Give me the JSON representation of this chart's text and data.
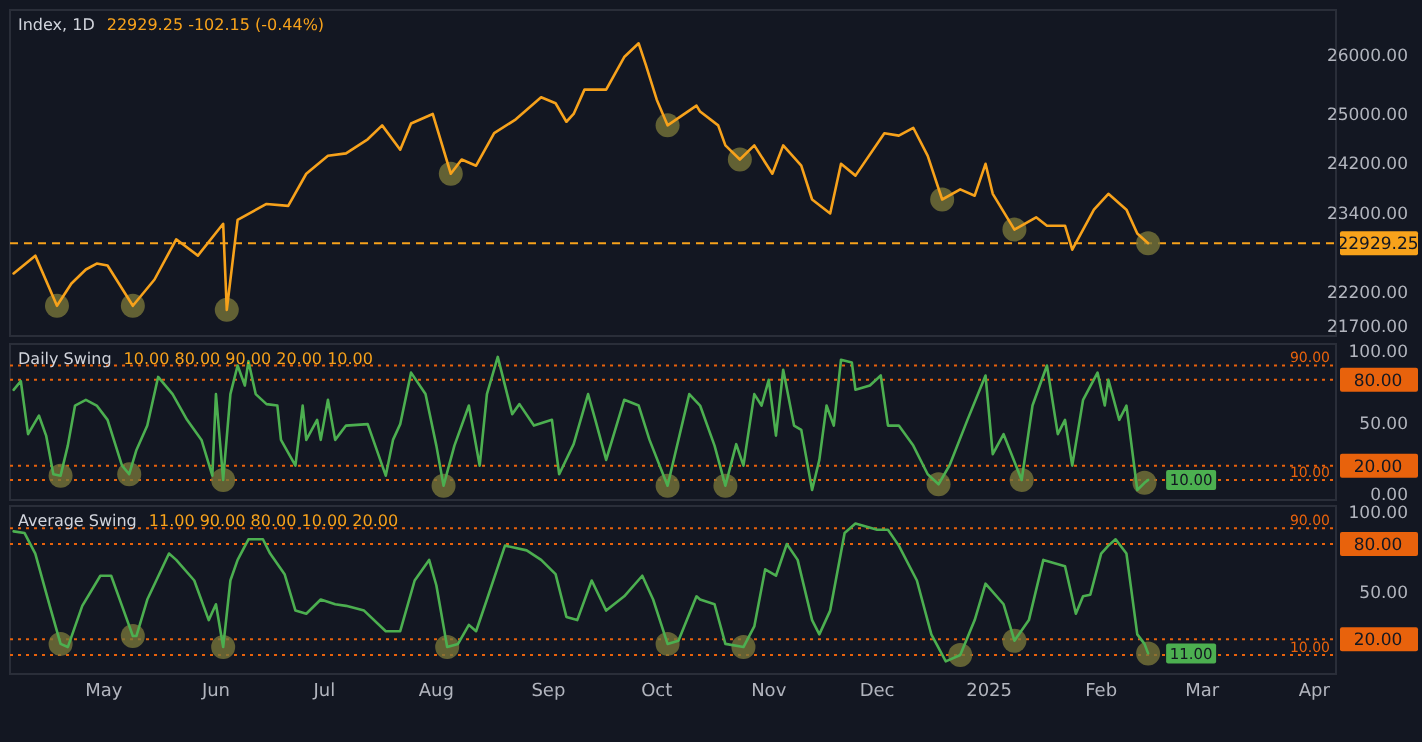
{
  "chart_data": [
    {
      "type": "line",
      "title": "Index, 1D",
      "subtitle": "22929.25  -102.15 (-0.44%)",
      "log": true,
      "tick_labels": "y",
      "xlim": [
        "2024-04-05",
        "2025-04-07"
      ],
      "ylim": [
        21550,
        26800
      ],
      "yticks": [
        {
          "value": 21700,
          "label": "21700.00"
        },
        {
          "value": 22200,
          "label": "22200.00"
        },
        {
          "value": 23400,
          "label": "23400.00"
        },
        {
          "value": 24200,
          "label": "24200.00"
        },
        {
          "value": 25000,
          "label": "25000.00"
        },
        {
          "value": 26000,
          "label": "26000.00"
        }
      ],
      "ref_lines": [
        {
          "axis": "y",
          "value": 22929.25,
          "label": "22929.25",
          "color": "#f7a21b",
          "line_style": "dashed"
        }
      ],
      "series": [
        {
          "color": "#f7a21b",
          "x": [
            "2024-04-06",
            "2024-04-12",
            "2024-04-18",
            "2024-04-22",
            "2024-04-26",
            "2024-04-29",
            "2024-05-02",
            "2024-05-09",
            "2024-05-15",
            "2024-05-21",
            "2024-05-27",
            "2024-06-03",
            "2024-06-04",
            "2024-06-07",
            "2024-06-15",
            "2024-06-21",
            "2024-06-26",
            "2024-07-02",
            "2024-07-07",
            "2024-07-13",
            "2024-07-17",
            "2024-07-22",
            "2024-07-25",
            "2024-07-31",
            "2024-08-05",
            "2024-08-08",
            "2024-08-12",
            "2024-08-17",
            "2024-08-23",
            "2024-08-30",
            "2024-09-03",
            "2024-09-06",
            "2024-09-08",
            "2024-09-11",
            "2024-09-17",
            "2024-09-22",
            "2024-09-26",
            "2024-09-28",
            "2024-10-01",
            "2024-10-04",
            "2024-10-12",
            "2024-10-13",
            "2024-10-18",
            "2024-10-20",
            "2024-10-24",
            "2024-10-28",
            "2024-11-02",
            "2024-11-05",
            "2024-11-10",
            "2024-11-13",
            "2024-11-18",
            "2024-11-21",
            "2024-11-25",
            "2024-12-03",
            "2024-12-07",
            "2024-12-11",
            "2024-12-15",
            "2024-12-19",
            "2024-12-24",
            "2024-12-28",
            "2024-12-31",
            "2025-01-02",
            "2025-01-08",
            "2025-01-14",
            "2025-01-17",
            "2025-01-22",
            "2025-01-24",
            "2025-01-30",
            "2025-02-03",
            "2025-02-08",
            "2025-02-11",
            "2025-02-14"
          ],
          "values": [
            22470,
            22740,
            21990,
            22320,
            22530,
            22620,
            22590,
            21990,
            22380,
            22990,
            22740,
            23230,
            21930,
            23290,
            23540,
            23510,
            24020,
            24310,
            24350,
            24580,
            24810,
            24410,
            24840,
            25000,
            24020,
            24250,
            24150,
            24680,
            24910,
            25280,
            25180,
            24870,
            25000,
            25410,
            25410,
            25970,
            26210,
            25830,
            25240,
            24810,
            25140,
            25040,
            24810,
            24480,
            24250,
            24480,
            24020,
            24480,
            24150,
            23610,
            23390,
            24180,
            23990,
            24680,
            24640,
            24770,
            24310,
            23610,
            23770,
            23670,
            24180,
            23700,
            23140,
            23330,
            23200,
            23200,
            22830,
            23450,
            23700,
            23450,
            23080,
            22929.25
          ]
        },
        {
          "type": "scatter",
          "marker": "circle",
          "color": "#77743a",
          "x": [
            "2024-04-18",
            "2024-05-09",
            "2024-06-04",
            "2024-08-05",
            "2024-10-04",
            "2024-10-24",
            "2024-12-19",
            "2025-01-08",
            "2025-02-14"
          ],
          "values": [
            21990,
            21990,
            21930,
            24020,
            24810,
            24250,
            23610,
            23140,
            22929.25
          ]
        }
      ]
    },
    {
      "type": "line",
      "title": "Daily Swing",
      "subtitle": "10.00  80.00  90.00  20.00  10.00",
      "tick_labels": "y",
      "xlim": [
        "2024-04-05",
        "2025-04-07"
      ],
      "ylim": [
        -4,
        105
      ],
      "yticks": [
        {
          "value": 0,
          "label": "0.00"
        },
        {
          "value": 50,
          "label": "50.00"
        },
        {
          "value": 100,
          "label": "100.00"
        }
      ],
      "ref_lines": [
        {
          "axis": "y",
          "value": 90,
          "label": "90.00",
          "color": "#e8620c",
          "line_style": "dotted"
        },
        {
          "axis": "y",
          "value": 80,
          "label": "80.00",
          "color": "#e8620c",
          "line_style": "dotted"
        },
        {
          "axis": "y",
          "value": 20,
          "label": "20.00",
          "color": "#e8620c",
          "line_style": "dotted"
        },
        {
          "axis": "y",
          "value": 10,
          "label": "10.00",
          "color": "#e8620c",
          "line_style": "dotted"
        }
      ],
      "annotations": [
        {
          "text": "10.00",
          "x": "2025-02-14",
          "y": 10
        }
      ],
      "series": [
        {
          "color": "#4caf50",
          "x": [
            "2024-04-06",
            "2024-04-08",
            "2024-04-10",
            "2024-04-13",
            "2024-04-15",
            "2024-04-17",
            "2024-04-19",
            "2024-04-21",
            "2024-04-23",
            "2024-04-26",
            "2024-04-29",
            "2024-05-02",
            "2024-05-06",
            "2024-05-08",
            "2024-05-10",
            "2024-05-13",
            "2024-05-16",
            "2024-05-20",
            "2024-05-24",
            "2024-05-28",
            "2024-05-31",
            "2024-06-01",
            "2024-06-03",
            "2024-06-05",
            "2024-06-07",
            "2024-06-09",
            "2024-06-10",
            "2024-06-12",
            "2024-06-15",
            "2024-06-18",
            "2024-06-19",
            "2024-06-23",
            "2024-06-25",
            "2024-06-26",
            "2024-06-29",
            "2024-06-30",
            "2024-07-02",
            "2024-07-04",
            "2024-07-07",
            "2024-07-13",
            "2024-07-18",
            "2024-07-20",
            "2024-07-22",
            "2024-07-25",
            "2024-07-29",
            "2024-08-01",
            "2024-08-03",
            "2024-08-06",
            "2024-08-10",
            "2024-08-13",
            "2024-08-15",
            "2024-08-18",
            "2024-08-22",
            "2024-08-24",
            "2024-08-28",
            "2024-09-02",
            "2024-09-04",
            "2024-09-08",
            "2024-09-12",
            "2024-09-14",
            "2024-09-17",
            "2024-09-22",
            "2024-09-26",
            "2024-09-29",
            "2024-10-04",
            "2024-10-10",
            "2024-10-13",
            "2024-10-17",
            "2024-10-20",
            "2024-10-23",
            "2024-10-25",
            "2024-10-28",
            "2024-10-30",
            "2024-11-01",
            "2024-11-03",
            "2024-11-05",
            "2024-11-08",
            "2024-11-10",
            "2024-11-13",
            "2024-11-15",
            "2024-11-17",
            "2024-11-19",
            "2024-11-21",
            "2024-11-24",
            "2024-11-25",
            "2024-11-29",
            "2024-12-02",
            "2024-12-04",
            "2024-12-07",
            "2024-12-11",
            "2024-12-15",
            "2024-12-18",
            "2024-12-21",
            "2024-12-26",
            "2024-12-31",
            "2025-01-02",
            "2025-01-05",
            "2025-01-10",
            "2025-01-13",
            "2025-01-17",
            "2025-01-20",
            "2025-01-22",
            "2025-01-24",
            "2025-01-27",
            "2025-01-31",
            "2025-02-02",
            "2025-02-03",
            "2025-02-06",
            "2025-02-08",
            "2025-02-11",
            "2025-02-13",
            "2025-02-14"
          ],
          "values": [
            73,
            79,
            42,
            55,
            41,
            14,
            13,
            34,
            62,
            66,
            62,
            52,
            20,
            14,
            31,
            48,
            82,
            70,
            52,
            38,
            13,
            70,
            10,
            70,
            90,
            76,
            93,
            70,
            63,
            62,
            38,
            20,
            62,
            38,
            52,
            38,
            66,
            38,
            48,
            49,
            13,
            38,
            49,
            85,
            70,
            34,
            6,
            34,
            62,
            20,
            70,
            96,
            56,
            63,
            48,
            52,
            14,
            35,
            70,
            52,
            24,
            66,
            62,
            38,
            6,
            70,
            62,
            34,
            6,
            35,
            20,
            70,
            62,
            80,
            41,
            87,
            48,
            45,
            3,
            24,
            62,
            48,
            94,
            92,
            73,
            76,
            83,
            48,
            48,
            34,
            14,
            7,
            20,
            52,
            83,
            28,
            42,
            10,
            62,
            90,
            42,
            52,
            20,
            66,
            85,
            62,
            80,
            52,
            62,
            3,
            8,
            10
          ]
        },
        {
          "type": "scatter",
          "marker": "circle",
          "color": "#77743a",
          "x": [
            "2024-04-19",
            "2024-05-08",
            "2024-06-03",
            "2024-08-03",
            "2024-10-04",
            "2024-10-20",
            "2024-12-18",
            "2025-01-10",
            "2025-02-13"
          ],
          "values": [
            13,
            14,
            10,
            6,
            6,
            6,
            7,
            10,
            8
          ]
        }
      ]
    },
    {
      "type": "line",
      "title": "Average Swing",
      "subtitle": "11.00  90.00  80.00  10.00  20.00",
      "xlim": [
        "2024-04-05",
        "2025-04-07"
      ],
      "ylim": [
        -2,
        104
      ],
      "xticks": [
        {
          "value": "2024-05-01",
          "label": "May"
        },
        {
          "value": "2024-06-01",
          "label": "Jun"
        },
        {
          "value": "2024-07-01",
          "label": "Jul"
        },
        {
          "value": "2024-08-01",
          "label": "Aug"
        },
        {
          "value": "2024-09-01",
          "label": "Sep"
        },
        {
          "value": "2024-10-01",
          "label": "Oct"
        },
        {
          "value": "2024-11-01",
          "label": "Nov"
        },
        {
          "value": "2024-12-01",
          "label": "Dec"
        },
        {
          "value": "2025-01-01",
          "label": "2025"
        },
        {
          "value": "2025-02-01",
          "label": "Feb"
        },
        {
          "value": "2025-03-01",
          "label": "Mar"
        },
        {
          "value": "2025-04-01",
          "label": "Apr"
        }
      ],
      "yticks": [
        {
          "value": 50,
          "label": "50.00"
        },
        {
          "value": 100,
          "label": "100.00"
        }
      ],
      "ref_lines": [
        {
          "axis": "y",
          "value": 90,
          "label": "90.00",
          "color": "#e8620c",
          "line_style": "dotted"
        },
        {
          "axis": "y",
          "value": 80,
          "label": "80.00",
          "color": "#e8620c",
          "line_style": "dotted"
        },
        {
          "axis": "y",
          "value": 20,
          "label": "20.00",
          "color": "#e8620c",
          "line_style": "dotted"
        },
        {
          "axis": "y",
          "value": 10,
          "label": "10.00",
          "color": "#e8620c",
          "line_style": "dotted"
        }
      ],
      "annotations": [
        {
          "text": "11.00",
          "x": "2025-02-14",
          "y": 11
        }
      ],
      "series": [
        {
          "color": "#4caf50",
          "x": [
            "2024-04-06",
            "2024-04-09",
            "2024-04-12",
            "2024-04-16",
            "2024-04-19",
            "2024-04-21",
            "2024-04-25",
            "2024-04-30",
            "2024-05-03",
            "2024-05-06",
            "2024-05-09",
            "2024-05-10",
            "2024-05-13",
            "2024-05-19",
            "2024-05-21",
            "2024-05-26",
            "2024-05-30",
            "2024-06-01",
            "2024-06-03",
            "2024-06-05",
            "2024-06-07",
            "2024-06-10",
            "2024-06-14",
            "2024-06-16",
            "2024-06-20",
            "2024-06-23",
            "2024-06-26",
            "2024-06-30",
            "2024-07-04",
            "2024-07-07",
            "2024-07-12",
            "2024-07-18",
            "2024-07-22",
            "2024-07-26",
            "2024-07-30",
            "2024-08-01",
            "2024-08-04",
            "2024-08-07",
            "2024-08-10",
            "2024-08-12",
            "2024-08-15",
            "2024-08-20",
            "2024-08-26",
            "2024-08-30",
            "2024-09-03",
            "2024-09-06",
            "2024-09-09",
            "2024-09-13",
            "2024-09-17",
            "2024-09-22",
            "2024-09-27",
            "2024-09-30",
            "2024-10-04",
            "2024-10-07",
            "2024-10-12",
            "2024-10-13",
            "2024-10-17",
            "2024-10-20",
            "2024-10-25",
            "2024-10-28",
            "2024-10-31",
            "2024-11-03",
            "2024-11-06",
            "2024-11-09",
            "2024-11-13",
            "2024-11-15",
            "2024-11-18",
            "2024-11-22",
            "2024-11-25",
            "2024-12-01",
            "2024-12-04",
            "2024-12-07",
            "2024-12-12",
            "2024-12-16",
            "2024-12-20",
            "2024-12-24",
            "2024-12-28",
            "2024-12-31",
            "2025-01-05",
            "2025-01-08",
            "2025-01-12",
            "2025-01-16",
            "2025-01-22",
            "2025-01-25",
            "2025-01-27",
            "2025-01-29",
            "2025-02-01",
            "2025-02-03",
            "2025-02-05",
            "2025-02-08",
            "2025-02-11",
            "2025-02-13",
            "2025-02-14"
          ],
          "values": [
            88,
            87,
            74,
            41,
            17,
            15,
            41,
            60,
            60,
            41,
            22,
            22,
            45,
            74,
            70,
            57,
            32,
            42,
            15,
            57,
            70,
            83,
            83,
            74,
            61,
            38,
            36,
            45,
            42,
            41,
            38,
            25,
            25,
            57,
            70,
            54,
            15,
            17,
            29,
            25,
            45,
            79,
            76,
            70,
            61,
            34,
            32,
            57,
            38,
            47,
            60,
            45,
            17,
            19,
            47,
            45,
            42,
            17,
            15,
            28,
            64,
            60,
            80,
            70,
            32,
            23,
            38,
            87,
            93,
            89,
            89,
            79,
            57,
            23,
            6,
            10,
            32,
            55,
            42,
            19,
            32,
            70,
            66,
            36,
            47,
            48,
            74,
            79,
            83,
            74,
            23,
            17,
            11
          ]
        },
        {
          "type": "scatter",
          "marker": "circle",
          "color": "#77743a",
          "x": [
            "2024-04-19",
            "2024-05-09",
            "2024-06-03",
            "2024-08-04",
            "2024-10-04",
            "2024-10-25",
            "2024-12-24",
            "2025-01-08",
            "2025-02-14"
          ],
          "values": [
            17,
            22,
            15,
            15,
            17,
            15,
            10,
            19,
            11
          ]
        }
      ]
    }
  ]
}
